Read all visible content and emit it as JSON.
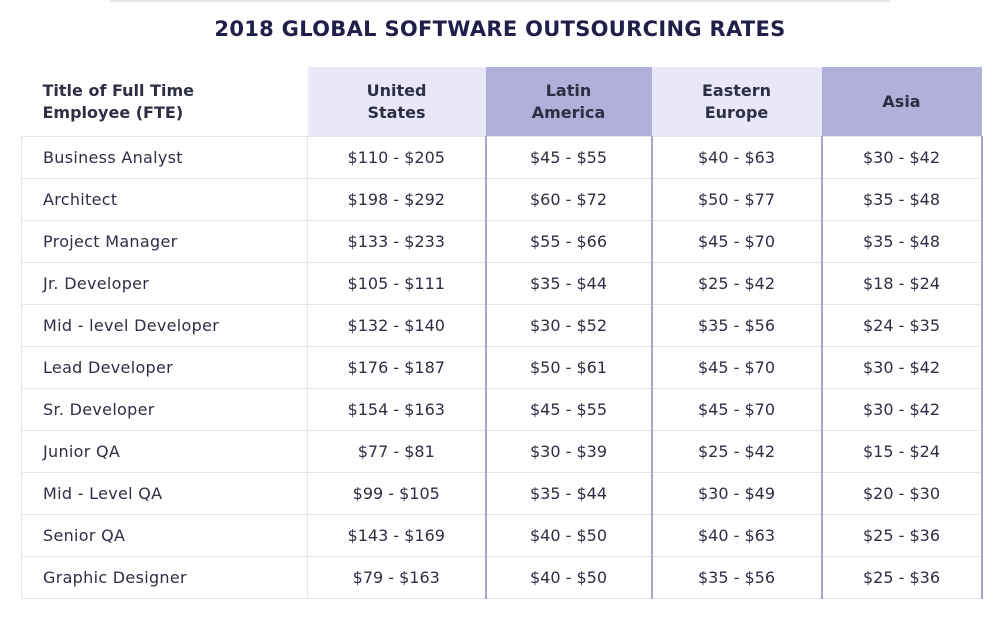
{
  "title": "2018 GLOBAL SOFTWARE OUTSOURCING RATES",
  "colors": {
    "title": "#1f1f4a",
    "header_light": "#e8e8f8",
    "header_dark": "#b0b0da",
    "divider": "#a6a6cf"
  },
  "table": {
    "headers": [
      {
        "line1": "Title of Full Time",
        "line2": "Employee (FTE)"
      },
      {
        "line1": "United",
        "line2": "States"
      },
      {
        "line1": "Latin",
        "line2": "America"
      },
      {
        "line1": "Eastern",
        "line2": "Europe"
      },
      {
        "line1": "Asia",
        "line2": ""
      }
    ],
    "rows": [
      {
        "role": "Business Analyst",
        "us": "$110 - $205",
        "la": "$45 - $55",
        "ee": "$40 - $63",
        "asia": "$30 - $42"
      },
      {
        "role": "Architect",
        "us": "$198 - $292",
        "la": "$60 - $72",
        "ee": "$50 - $77",
        "asia": "$35 - $48"
      },
      {
        "role": "Project Manager",
        "us": "$133 - $233",
        "la": "$55 - $66",
        "ee": "$45 - $70",
        "asia": "$35 - $48"
      },
      {
        "role": "Jr. Developer",
        "us": "$105 - $111",
        "la": "$35 - $44",
        "ee": "$25 - $42",
        "asia": "$18 - $24"
      },
      {
        "role": "Mid - level Developer",
        "us": "$132 - $140",
        "la": "$30 - $52",
        "ee": "$35 - $56",
        "asia": "$24 - $35"
      },
      {
        "role": "Lead Developer",
        "us": "$176 - $187",
        "la": "$50 - $61",
        "ee": "$45 - $70",
        "asia": "$30 - $42"
      },
      {
        "role": "Sr. Developer",
        "us": "$154 - $163",
        "la": "$45 - $55",
        "ee": "$45 - $70",
        "asia": "$30 - $42"
      },
      {
        "role": "Junior QA",
        "us": "$77 - $81",
        "la": "$30 - $39",
        "ee": "$25 - $42",
        "asia": "$15 - $24"
      },
      {
        "role": "Mid - Level QA",
        "us": "$99 - $105",
        "la": "$35 - $44",
        "ee": "$30 - $49",
        "asia": "$20 - $30"
      },
      {
        "role": "Senior QA",
        "us": "$143 - $169",
        "la": "$40 - $50",
        "ee": "$40 - $63",
        "asia": "$25 - $36"
      },
      {
        "role": "Graphic Designer",
        "us": "$79 - $163",
        "la": "$40 - $50",
        "ee": "$35 - $56",
        "asia": "$25 - $36"
      }
    ]
  }
}
